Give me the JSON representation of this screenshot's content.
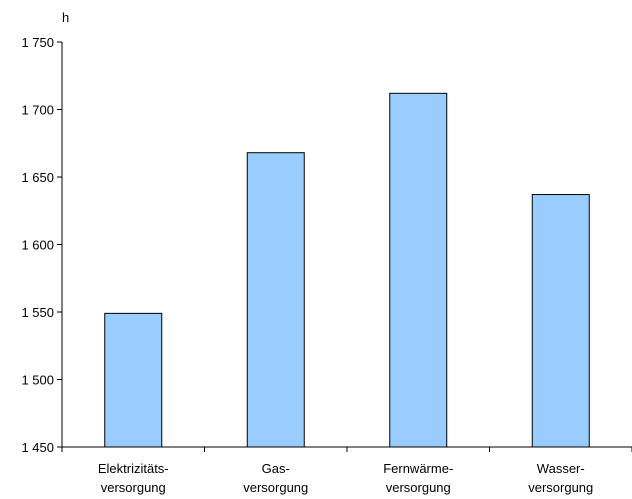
{
  "chart_data": {
    "type": "bar",
    "ylabel": "h",
    "categories": [
      [
        "Elektrizitäts-",
        "versorgung"
      ],
      [
        "Gas-",
        "versorgung"
      ],
      [
        "Fernwärme-",
        "versorgung"
      ],
      [
        "Wasser-",
        "versorgung"
      ]
    ],
    "values": [
      1549,
      1668,
      1712,
      1637
    ],
    "ylim": [
      1450,
      1750
    ],
    "yticks": [
      1450,
      1500,
      1550,
      1600,
      1650,
      1700,
      1750
    ],
    "ytick_labels": [
      "1 450",
      "1 500",
      "1 550",
      "1 600",
      "1 650",
      "1 700",
      "1 750"
    ],
    "grid": false,
    "bar_color": "#99ccff",
    "bar_edge_color": "#000000"
  }
}
